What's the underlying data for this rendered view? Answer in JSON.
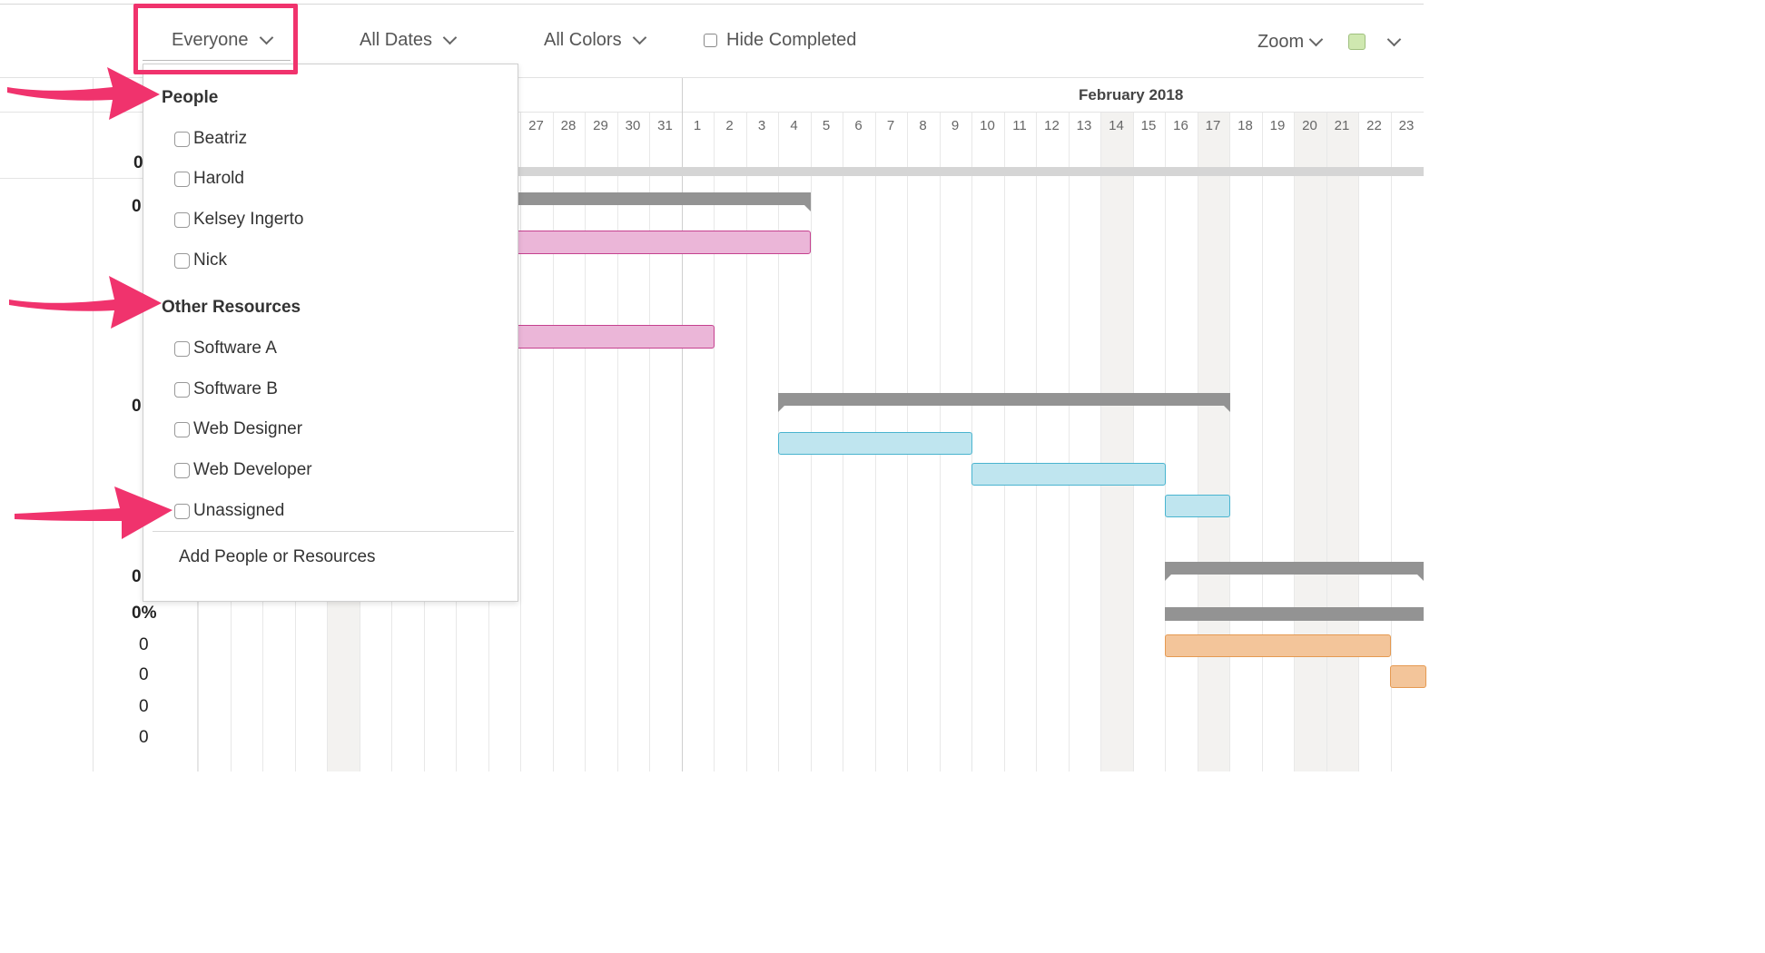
{
  "toolbar": {
    "people_filter": "Everyone",
    "dates_filter": "All Dates",
    "colors_filter": "All Colors",
    "hide_completed": "Hide Completed",
    "zoom": "Zoom",
    "color_swatch": "#cfe8b0"
  },
  "timeline": {
    "month": "February 2018",
    "days_prev": [
      "27",
      "28",
      "29",
      "30",
      "31"
    ],
    "days_feb": [
      "1",
      "2",
      "3",
      "4",
      "5",
      "6",
      "7",
      "8",
      "9",
      "10",
      "11",
      "12",
      "13",
      "14",
      "15",
      "16",
      "17",
      "18",
      "19",
      "20",
      "21",
      "22",
      "23"
    ]
  },
  "rows": {
    "percents": [
      "0",
      "0",
      "0",
      "0",
      "0%",
      "0",
      "0",
      "0",
      "0"
    ]
  },
  "dropdown": {
    "people_heading": "People",
    "people": [
      "Beatriz",
      "Harold",
      "Kelsey Ingerto",
      "Nick"
    ],
    "resources_heading": "Other Resources",
    "resources": [
      "Software A",
      "Software B",
      "Web Designer",
      "Web Developer"
    ],
    "unassigned": "Unassigned",
    "add_label": "Add People or Resources"
  },
  "colors": {
    "highlight": "#f0336d",
    "pink_bar": "#ebb6d8",
    "blue_bar": "#bfe5ef",
    "orange_bar": "#f3c59a",
    "summary_bar": "#939393"
  }
}
